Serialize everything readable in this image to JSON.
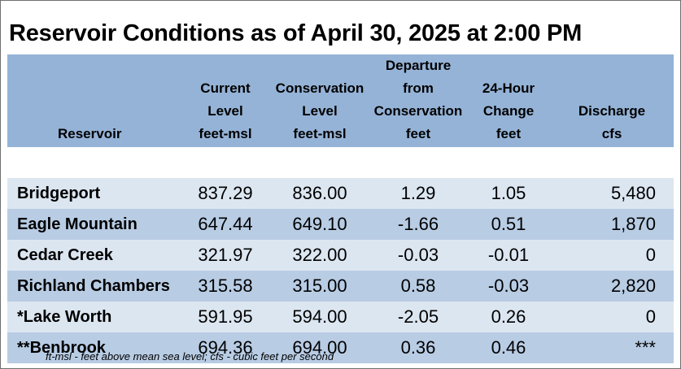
{
  "title": "Reservoir Conditions as of April 30, 2025 at 2:00 PM",
  "header": {
    "reservoir": "Reservoir",
    "current": [
      "Current",
      "Level",
      "feet-msl"
    ],
    "conservation": [
      "Conservation",
      "Level",
      "feet-msl"
    ],
    "departure": [
      "Departure",
      "from",
      "Conservation",
      "feet"
    ],
    "change": [
      "24-Hour",
      "Change",
      "feet"
    ],
    "discharge": [
      "Discharge",
      "cfs"
    ]
  },
  "rows": [
    {
      "name": "Bridgeport",
      "current": "837.29",
      "conservation": "836.00",
      "departure": "1.29",
      "change": "1.05",
      "discharge": "5,480"
    },
    {
      "name": "Eagle Mountain",
      "current": "647.44",
      "conservation": "649.10",
      "departure": "-1.66",
      "change": "0.51",
      "discharge": "1,870"
    },
    {
      "name": "Cedar Creek",
      "current": "321.97",
      "conservation": "322.00",
      "departure": "-0.03",
      "change": "-0.01",
      "discharge": "0"
    },
    {
      "name": "Richland Chambers",
      "current": "315.58",
      "conservation": "315.00",
      "departure": "0.58",
      "change": "-0.03",
      "discharge": "2,820"
    },
    {
      "name": "*Lake Worth",
      "current": "591.95",
      "conservation": "594.00",
      "departure": "-2.05",
      "change": "0.26",
      "discharge": "0"
    },
    {
      "name": "**Benbrook",
      "current": "694.36",
      "conservation": "694.00",
      "departure": "0.36",
      "change": "0.46",
      "discharge": "***"
    }
  ],
  "footnote": "ft-msl - feet above mean sea level; cfs - cubic feet per second",
  "colors": {
    "header_bg": "#95b3d7",
    "row_light": "#dce6f1",
    "row_dark": "#b8cce4"
  }
}
